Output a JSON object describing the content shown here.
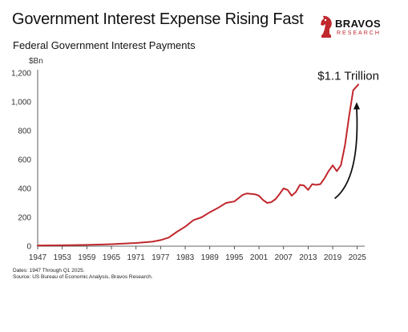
{
  "header": {
    "title": "Government Interest Expense Rising Fast",
    "subtitle": "Federal Government Interest Payments"
  },
  "brand": {
    "name": "BRAVOS",
    "tagline": "RESEARCH",
    "icon": "knight-chess-icon",
    "accent_color": "#c0282d"
  },
  "notes": {
    "dates": "Dates: 1947 Through Q1 2025.",
    "source": "Source: US Bureau of Economic Analysis, Bravos Research."
  },
  "chart_data": {
    "type": "line",
    "title": "Federal Government Interest Payments",
    "ylabel": "$Bn",
    "xlabel": "",
    "xlim": [
      1947,
      2025.25
    ],
    "ylim": [
      0,
      1200
    ],
    "x_ticks": [
      "1947",
      "1953",
      "1959",
      "1965",
      "1971",
      "1977",
      "1983",
      "1989",
      "1995",
      "2001",
      "2007",
      "2013",
      "2019",
      "2025"
    ],
    "y_ticks": [
      "0",
      "200",
      "400",
      "600",
      "800",
      "1,000",
      "1,200"
    ],
    "grid": false,
    "legend": "none",
    "line_color": "#c0282d",
    "annotation": {
      "text": "$1.1 Trillion",
      "arrow": "upward curved arrow pointing to latest value"
    },
    "series": [
      {
        "x": [
          1947,
          1953,
          1959,
          1965,
          1971,
          1975,
          1977,
          1979,
          1981,
          1983,
          1985,
          1987,
          1989,
          1991,
          1993,
          1995,
          1997,
          1998,
          2000,
          2001,
          2002,
          2003,
          2004,
          2005,
          2006,
          2007,
          2008,
          2009,
          2010,
          2011,
          2012,
          2013,
          2014,
          2015,
          2016,
          2017,
          2018,
          2019,
          2020,
          2021,
          2022,
          2023,
          2024,
          2025.25
        ],
        "y": [
          5,
          6,
          9,
          14,
          22,
          31,
          42,
          60,
          100,
          135,
          180,
          200,
          235,
          265,
          300,
          310,
          355,
          365,
          360,
          350,
          320,
          300,
          305,
          325,
          360,
          400,
          390,
          350,
          375,
          425,
          420,
          390,
          430,
          425,
          430,
          470,
          520,
          560,
          520,
          560,
          700,
          900,
          1080,
          1120
        ]
      }
    ]
  }
}
